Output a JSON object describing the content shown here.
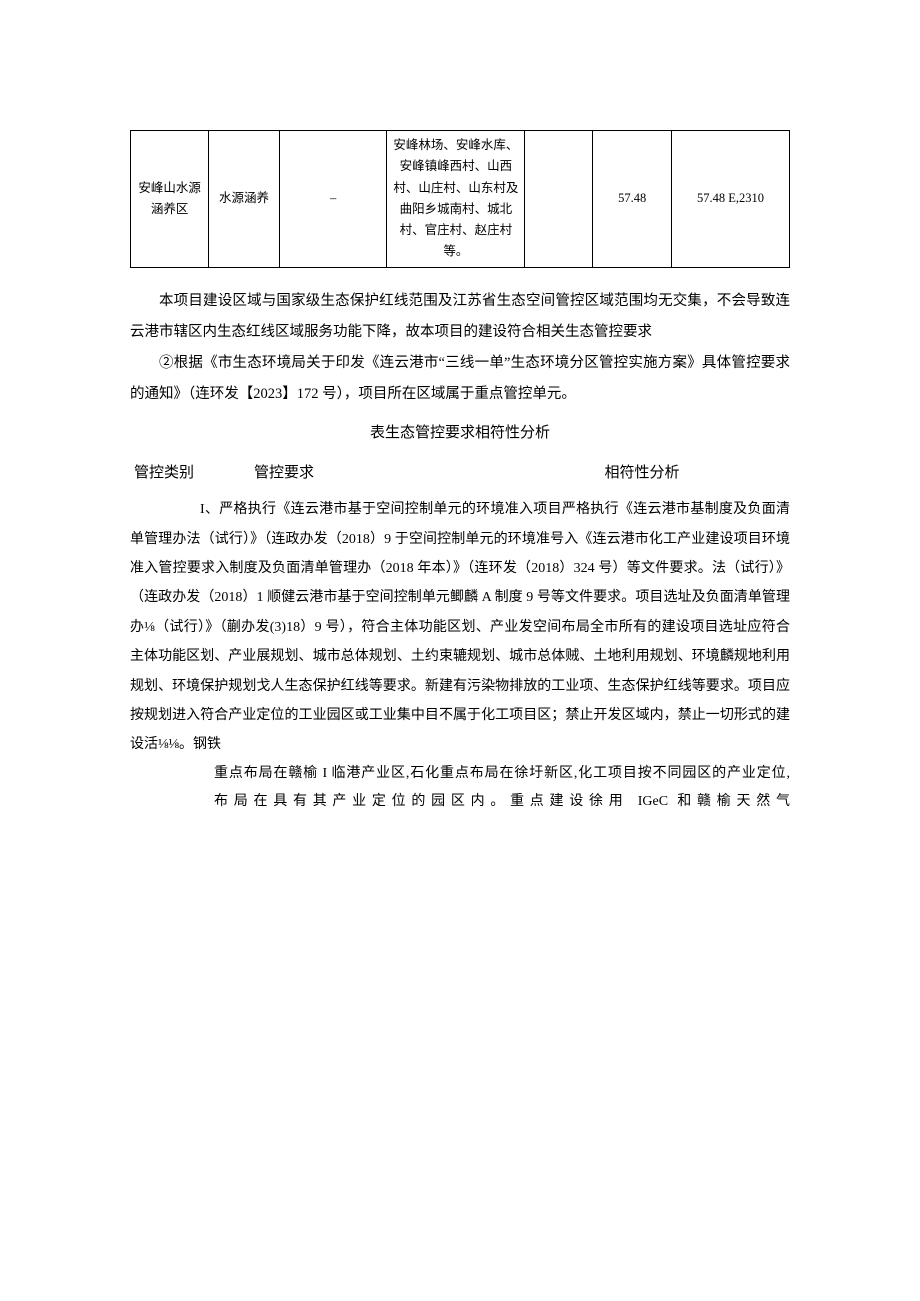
{
  "table1": {
    "row": {
      "c0": "安峰山水源涵养区",
      "c1": "水源涵养",
      "c2": "–",
      "c3": "安峰林场、安峰水库、安峰镇峰西村、山西村、山庄村、山东村及曲阳乡城南村、城北村、官庄村、赵庄村等。",
      "c4": "",
      "c5": "57.48",
      "c6": "57.48 E,2310"
    }
  },
  "paras": {
    "p1": "本项目建设区域与国家级生态保护红线范围及江苏省生态空间管控区域范围均无交集，不会导致连云港市辖区内生态红线区域服务功能下降，故本项目的建设符合相关生态管控要求",
    "p2": "②根据《市生态环境局关于印发《连云港市“三线一单”生态环境分区管控实施方案》具体管控要求的通知》（连环发【2023】172 号），项目所在区域属于重点管控单元。"
  },
  "sectionTitle": "表生态管控要求相符性分析",
  "subhead": {
    "c1": "管控类别",
    "c2": "管控要求",
    "c3": "相符性分析"
  },
  "body": {
    "lead": "I、严格执行《连云港市基于空间控制单元的环境准入项目严格执行《连云港市基制度及负面清单管理办法（试行）》（连政办发（2018）9 于空间控制单元的环境准号入《连云港市化工产业建设项目环境准入管控要求入制度及负面清单管理办（2018 年本）》（连环发（2018）324 号）等文件要求。法（试行）》（连政办发（2018）1 顺健云港市基于空间控制单元鲫麟 A 制度 9 号等文件要求。项目选址及负面清单管理办⅛（试行）》（蒯办发(3)18）9 号），符合主体功能区划、产业发空间布局全市所有的建设项目选址应符合主体功能区划、产业展规划、城市总体规划、土约束辘规划、城市总体贼、土地利用规划、环境麟规地利用规划、环境保护规划戈人生态保护红线等要求。新建有污染物排放的工业项、生态保护红线等要求。项目应按规划进入符合产业定位的工业园区或工业集中目不属于化工项目区；禁止开发区域内，禁止一切形式的建设活⅛⅛。钢铁"
  },
  "tail": {
    "l1": "重点布局在赣榆 I 临港产业区,石化重点布局在徐圩新区,化工项目按不同园区的产业定位,",
    "l2": "布局在具有其产业定位的园区内。重点建设徐用 IGeC 和赣榆天然气"
  }
}
